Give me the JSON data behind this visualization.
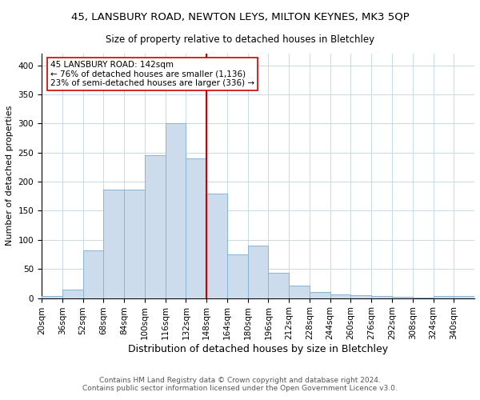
{
  "title1": "45, LANSBURY ROAD, NEWTON LEYS, MILTON KEYNES, MK3 5QP",
  "title2": "Size of property relative to detached houses in Bletchley",
  "xlabel": "Distribution of detached houses by size in Bletchley",
  "ylabel": "Number of detached properties",
  "footnote": "Contains HM Land Registry data © Crown copyright and database right 2024.\nContains public sector information licensed under the Open Government Licence v3.0.",
  "bar_labels": [
    "20sqm",
    "36sqm",
    "52sqm",
    "68sqm",
    "84sqm",
    "100sqm",
    "116sqm",
    "132sqm",
    "148sqm",
    "164sqm",
    "180sqm",
    "196sqm",
    "212sqm",
    "228sqm",
    "244sqm",
    "260sqm",
    "276sqm",
    "292sqm",
    "308sqm",
    "324sqm",
    "340sqm"
  ],
  "bar_values": [
    4,
    14,
    82,
    186,
    186,
    245,
    300,
    240,
    180,
    75,
    90,
    43,
    22,
    11,
    6,
    5,
    4,
    2,
    1,
    3,
    3
  ],
  "bar_color": "#ccdcec",
  "bar_edge_color": "#88b4d4",
  "annotation_text": "45 LANSBURY ROAD: 142sqm\n← 76% of detached houses are smaller (1,136)\n23% of semi-detached houses are larger (336) →",
  "vline_color": "#cc0000",
  "annotation_box_color": "#ffffff",
  "annotation_box_edge_color": "#cc0000",
  "ylim": [
    0,
    420
  ],
  "yticks": [
    0,
    50,
    100,
    150,
    200,
    250,
    300,
    350,
    400
  ],
  "title1_fontsize": 9.5,
  "title2_fontsize": 8.5,
  "xlabel_fontsize": 9,
  "ylabel_fontsize": 8,
  "tick_fontsize": 7.5,
  "annotation_fontsize": 7.5,
  "footnote_fontsize": 6.5,
  "background_color": "#ffffff",
  "grid_color": "#c8d8e8"
}
